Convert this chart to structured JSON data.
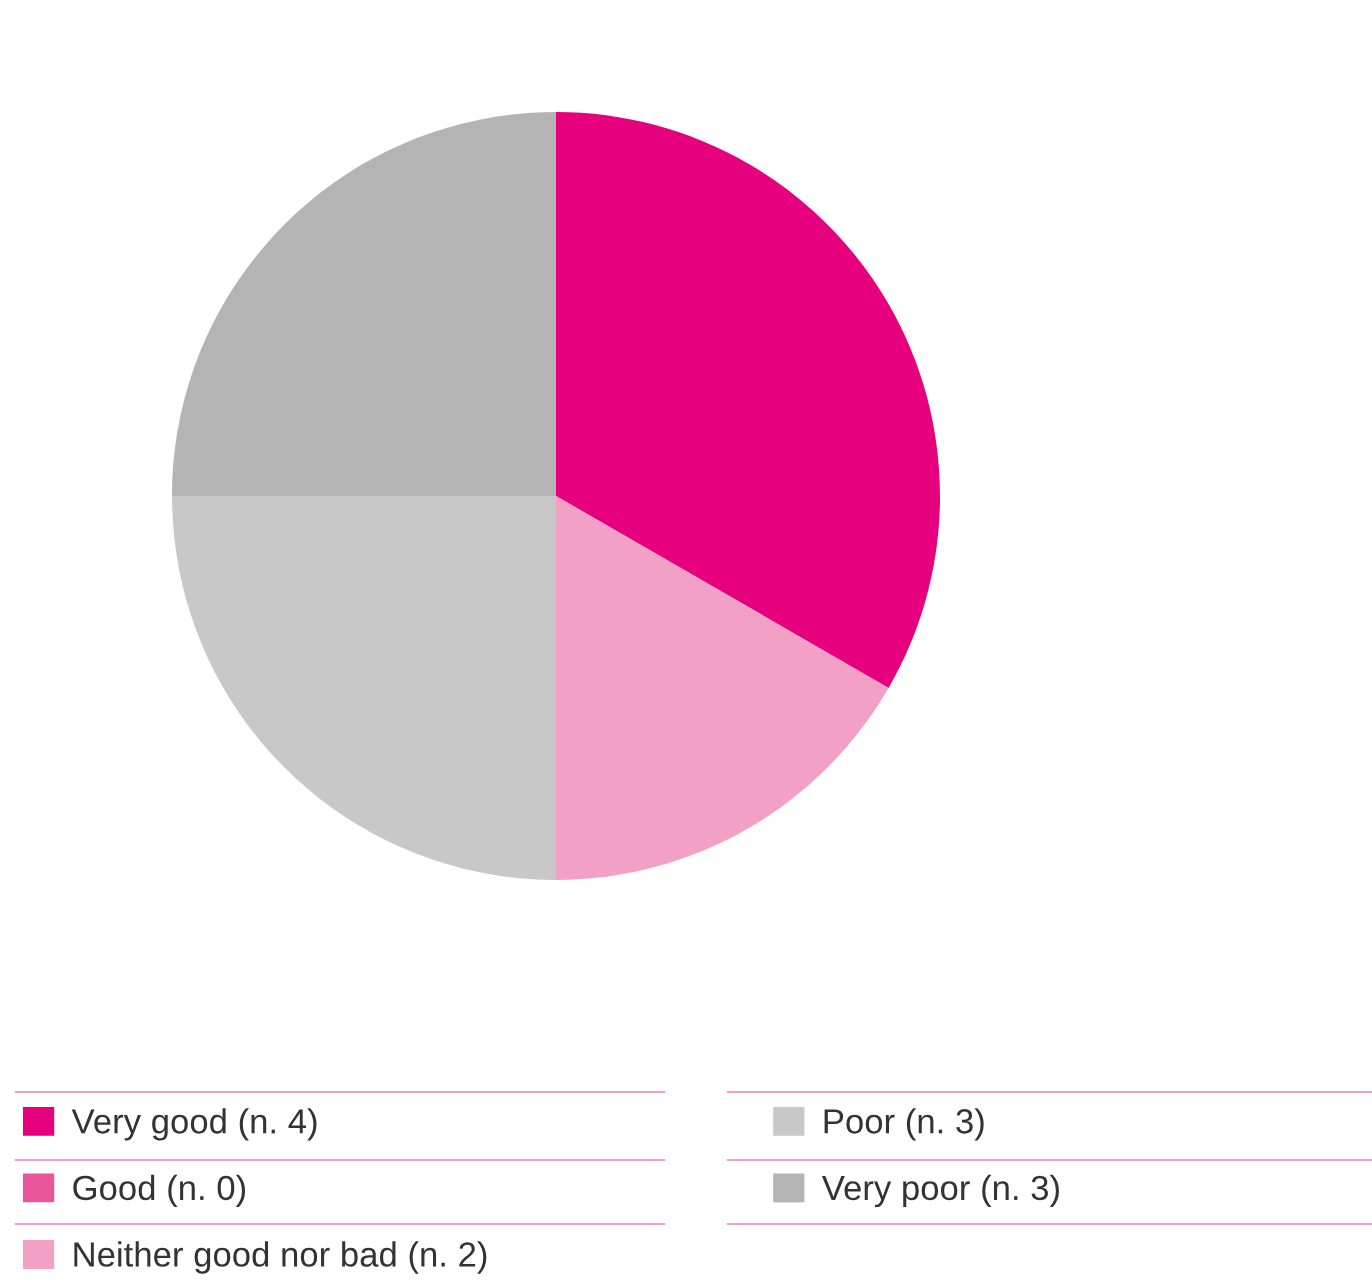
{
  "chart_data": {
    "type": "pie",
    "categories": [
      "Very good (n. 4)",
      "Good (n. 0)",
      "Neither good nor bad (n. 2)",
      "Poor (n. 3)",
      "Very poor (n. 3)"
    ],
    "values": [
      4,
      0,
      2,
      3,
      3
    ],
    "colors": [
      "#e6007e",
      "#e9559a",
      "#f3a0c6",
      "#c8c8c8",
      "#b4b4b4"
    ],
    "legend": "bottom"
  }
}
